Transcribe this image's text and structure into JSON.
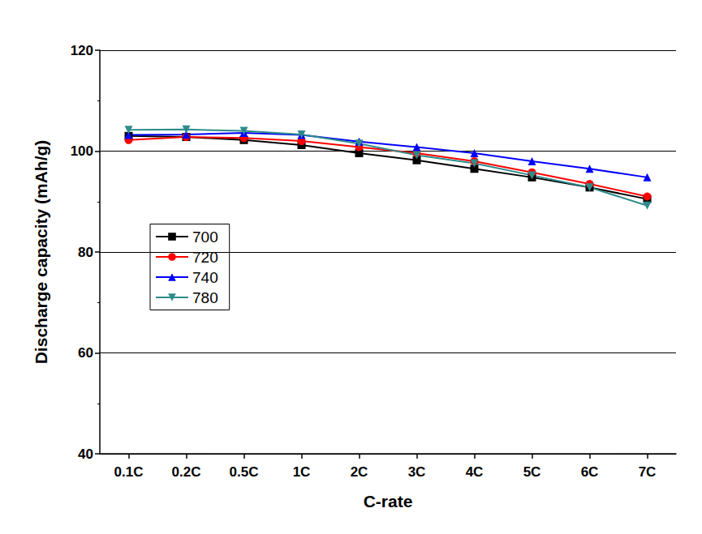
{
  "chart_data": {
    "type": "line",
    "x_label": "C-rate",
    "y_label": "Discharge capacity (mAh/g)",
    "categories": [
      "0.1C",
      "0.2C",
      "0.5C",
      "1C",
      "2C",
      "3C",
      "4C",
      "5C",
      "6C",
      "7C"
    ],
    "series": [
      {
        "name": "700",
        "color": "#000000",
        "marker": "square",
        "values": [
          103.0,
          102.8,
          102.2,
          101.2,
          99.6,
          98.2,
          96.5,
          94.8,
          92.8,
          90.5
        ]
      },
      {
        "name": "720",
        "color": "#ff0000",
        "marker": "circle",
        "values": [
          102.2,
          102.8,
          102.6,
          102.0,
          100.8,
          99.6,
          98.0,
          95.8,
          93.5,
          91.0
        ]
      },
      {
        "name": "740",
        "color": "#0000ff",
        "marker": "triangle",
        "values": [
          103.2,
          103.3,
          103.6,
          103.2,
          101.9,
          100.8,
          99.6,
          98.0,
          96.5,
          94.8
        ]
      },
      {
        "name": "780",
        "color": "#2e8b8b",
        "marker": "down triangle",
        "values": [
          104.2,
          104.3,
          104.0,
          103.3,
          101.5,
          99.2,
          97.6,
          95.2,
          92.8,
          89.2
        ]
      }
    ],
    "ylim": [
      40,
      120
    ],
    "yticks": [
      40,
      60,
      80,
      100,
      120
    ],
    "grid": true,
    "legend": "left"
  }
}
